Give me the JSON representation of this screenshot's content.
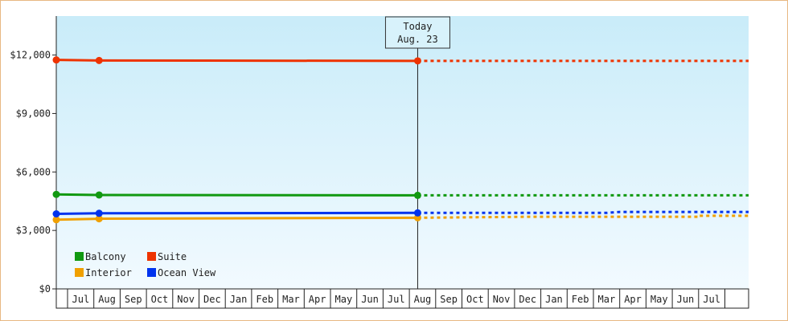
{
  "chart_data": {
    "type": "line",
    "x": [
      "Jul",
      "Aug",
      "Sep",
      "Oct",
      "Nov",
      "Dec",
      "Jan",
      "Feb",
      "Mar",
      "Apr",
      "May",
      "Jun",
      "Jul",
      "Aug",
      "Sep",
      "Oct",
      "Nov",
      "Dec",
      "Jan",
      "Feb",
      "Mar",
      "Apr",
      "May",
      "Jun",
      "Jul"
    ],
    "y_ticks": [
      "$0",
      "$3,000",
      "$6,000",
      "$9,000",
      "$12,000"
    ],
    "ylim": [
      0,
      14000
    ],
    "today": {
      "label": "Today",
      "date": "Aug. 23",
      "index": 13
    },
    "legend_placement": "bottom-left",
    "grid": false,
    "series": [
      {
        "name": "Balcony",
        "color": "#119911",
        "points": [
          [
            -0.5,
            4850
          ],
          [
            0.7,
            4820
          ],
          [
            13,
            4800
          ]
        ],
        "forecast": [
          [
            13,
            4800
          ],
          [
            26,
            4800
          ]
        ]
      },
      {
        "name": "Suite",
        "color": "#ee3300",
        "points": [
          [
            -0.5,
            11750
          ],
          [
            0.7,
            11720
          ],
          [
            13,
            11700
          ]
        ],
        "forecast": [
          [
            13,
            11700
          ],
          [
            26,
            11700
          ]
        ]
      },
      {
        "name": "Interior",
        "color": "#f0a000",
        "points": [
          [
            -0.5,
            3550
          ],
          [
            0.7,
            3600
          ],
          [
            13,
            3650
          ]
        ],
        "forecast": [
          [
            13,
            3650
          ],
          [
            17,
            3700
          ],
          [
            23.5,
            3700
          ],
          [
            23.5,
            3750
          ],
          [
            26,
            3750
          ]
        ]
      },
      {
        "name": "Ocean View",
        "color": "#0033ee",
        "points": [
          [
            -0.5,
            3850
          ],
          [
            0.7,
            3880
          ],
          [
            13,
            3900
          ]
        ],
        "forecast": [
          [
            13,
            3900
          ],
          [
            20,
            3900
          ],
          [
            20.5,
            3950
          ],
          [
            26,
            3950
          ]
        ]
      }
    ]
  }
}
